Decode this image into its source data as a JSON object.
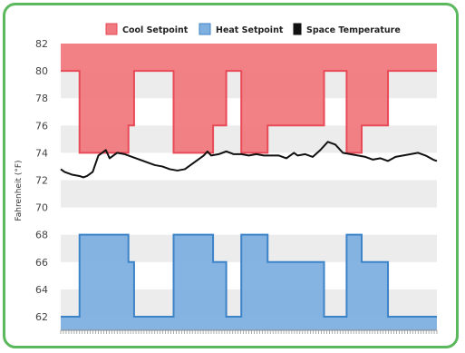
{
  "chart_data": {
    "type": "line",
    "title": "",
    "xlabel": "",
    "ylabel": "Fahrenheit (°F)",
    "ylim": [
      61,
      82
    ],
    "yticks": [
      62,
      64,
      66,
      68,
      70,
      72,
      74,
      76,
      78,
      80,
      82
    ],
    "grid": "horizontal-bands",
    "legend_position": "top-right",
    "x_range": [
      0,
      100
    ],
    "series": [
      {
        "name": "Cool Setpoint",
        "style": "step-area",
        "color": "#e84b57",
        "fill": "#f17a80",
        "baseline": 82,
        "x": [
          0,
          5,
          5,
          18,
          18,
          19.5,
          19.5,
          30,
          30,
          40.5,
          40.5,
          44,
          44,
          48,
          48,
          55,
          55,
          70,
          70,
          76,
          76,
          80,
          80,
          87,
          87,
          100
        ],
        "values": [
          80,
          80,
          74,
          74,
          76,
          76,
          80,
          80,
          74,
          74,
          76,
          76,
          80,
          80,
          74,
          74,
          76,
          76,
          80,
          80,
          74,
          74,
          76,
          76,
          80,
          80
        ]
      },
      {
        "name": "Heat Setpoint",
        "style": "step-area",
        "color": "#3d83c8",
        "fill": "#7fb0e0",
        "baseline": 61,
        "x": [
          0,
          5,
          5,
          18,
          18,
          19.5,
          19.5,
          30,
          30,
          40.5,
          40.5,
          44,
          44,
          48,
          48,
          55,
          55,
          70,
          70,
          76,
          76,
          80,
          80,
          87,
          87,
          100
        ],
        "values": [
          62,
          62,
          68,
          68,
          66,
          66,
          62,
          62,
          68,
          68,
          66,
          66,
          62,
          62,
          68,
          68,
          66,
          66,
          62,
          62,
          68,
          68,
          66,
          66,
          62,
          62
        ]
      },
      {
        "name": "Space Temperature",
        "style": "line",
        "color": "#111111",
        "x": [
          0,
          1,
          3,
          5,
          6,
          7,
          8.5,
          10,
          11,
          12,
          13,
          15,
          17,
          19,
          21,
          23,
          25,
          27,
          29,
          31,
          33,
          35,
          37,
          38,
          39,
          40,
          42,
          44,
          46,
          48,
          50,
          52,
          54,
          56,
          58,
          60,
          62,
          63,
          65,
          67,
          69,
          71,
          73,
          75,
          77,
          79,
          81,
          83,
          85,
          87,
          89,
          91,
          93,
          95,
          97,
          99,
          100
        ],
        "values": [
          72.8,
          72.6,
          72.4,
          72.3,
          72.2,
          72.3,
          72.6,
          73.8,
          74.0,
          74.2,
          73.6,
          74.0,
          73.9,
          73.7,
          73.5,
          73.3,
          73.1,
          73.0,
          72.8,
          72.7,
          72.8,
          73.2,
          73.6,
          73.8,
          74.1,
          73.8,
          73.9,
          74.1,
          73.9,
          73.9,
          73.8,
          73.9,
          73.8,
          73.8,
          73.8,
          73.6,
          74.0,
          73.8,
          73.9,
          73.7,
          74.2,
          74.8,
          74.6,
          74.0,
          73.9,
          73.8,
          73.7,
          73.5,
          73.6,
          73.4,
          73.7,
          73.8,
          73.9,
          74.0,
          73.8,
          73.5,
          73.4
        ]
      }
    ]
  }
}
